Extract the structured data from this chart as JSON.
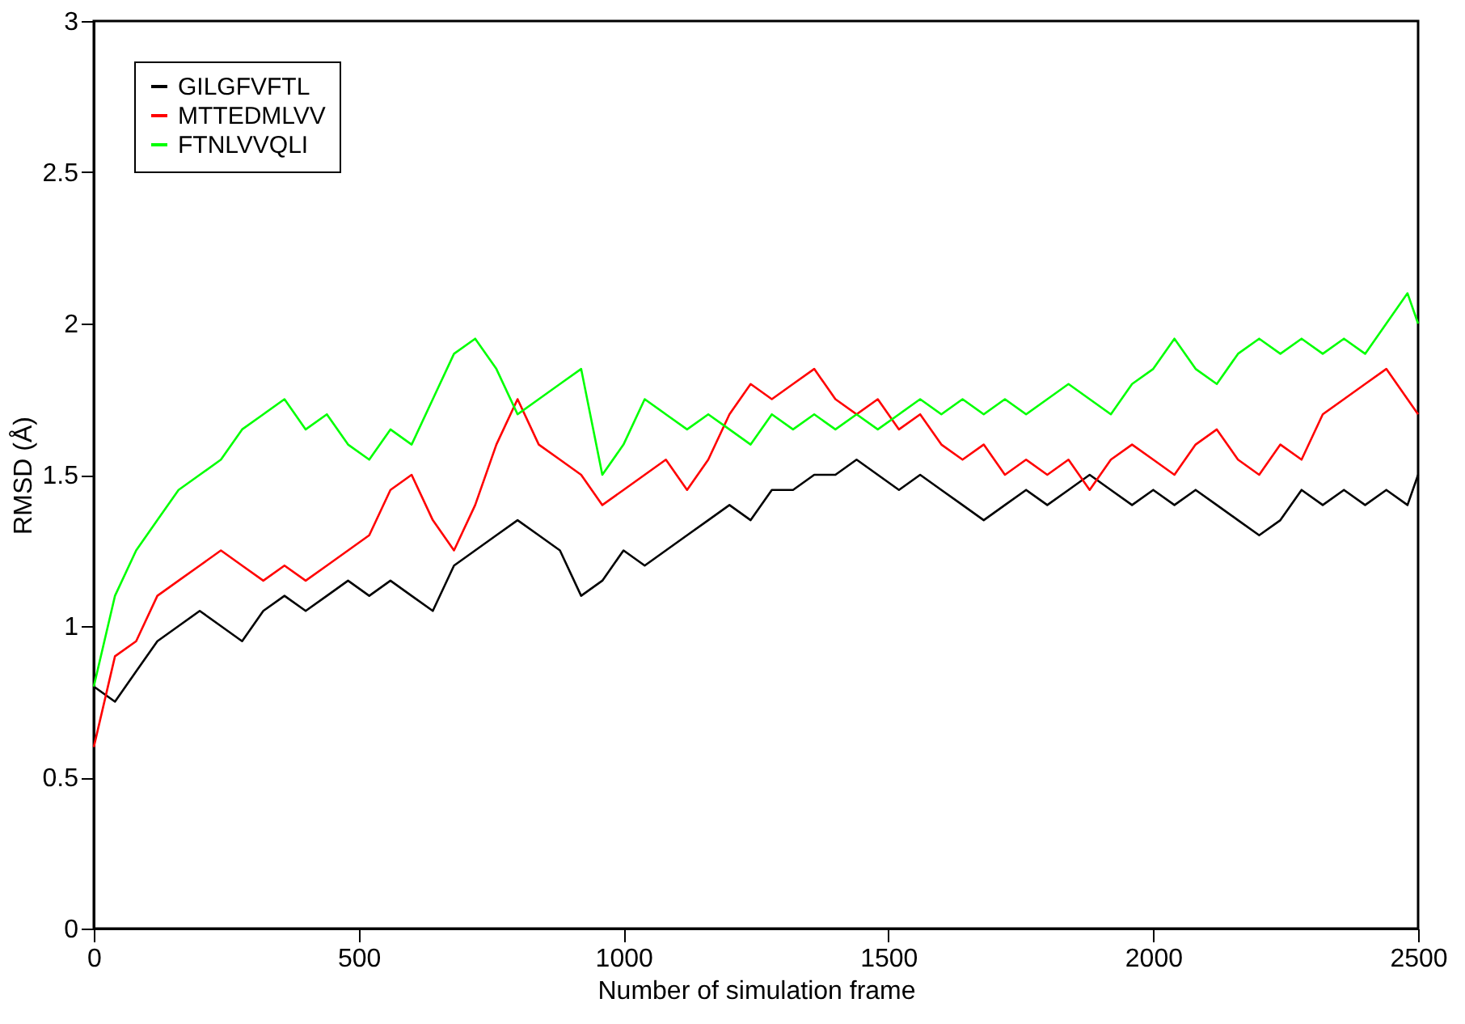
{
  "chart_data": {
    "type": "line",
    "xlabel": "Number of simulation frame",
    "ylabel": "RMSD (Å)",
    "x": [
      0,
      40,
      80,
      120,
      160,
      200,
      240,
      280,
      320,
      360,
      400,
      440,
      480,
      520,
      560,
      600,
      640,
      680,
      720,
      760,
      800,
      840,
      880,
      920,
      960,
      1000,
      1040,
      1080,
      1120,
      1160,
      1200,
      1240,
      1280,
      1320,
      1360,
      1400,
      1440,
      1480,
      1520,
      1560,
      1600,
      1640,
      1680,
      1720,
      1760,
      1800,
      1840,
      1880,
      1920,
      1960,
      2000,
      2040,
      2080,
      2120,
      2160,
      2200,
      2240,
      2280,
      2320,
      2360,
      2400,
      2440,
      2480,
      2500
    ],
    "series": [
      {
        "name": "GILGFVFTL",
        "color": "#000000",
        "values": [
          0.8,
          0.75,
          0.85,
          0.95,
          1.0,
          1.05,
          1.0,
          0.95,
          1.05,
          1.1,
          1.05,
          1.1,
          1.15,
          1.1,
          1.15,
          1.1,
          1.05,
          1.2,
          1.25,
          1.3,
          1.35,
          1.3,
          1.25,
          1.1,
          1.15,
          1.25,
          1.2,
          1.25,
          1.3,
          1.35,
          1.4,
          1.35,
          1.45,
          1.45,
          1.5,
          1.5,
          1.55,
          1.5,
          1.45,
          1.5,
          1.45,
          1.4,
          1.35,
          1.4,
          1.45,
          1.4,
          1.45,
          1.5,
          1.45,
          1.4,
          1.45,
          1.4,
          1.45,
          1.4,
          1.35,
          1.3,
          1.35,
          1.45,
          1.4,
          1.45,
          1.4,
          1.45,
          1.4,
          1.5
        ]
      },
      {
        "name": "MTTEDMLVV",
        "color": "#ff0000",
        "values": [
          0.6,
          0.9,
          0.95,
          1.1,
          1.15,
          1.2,
          1.25,
          1.2,
          1.15,
          1.2,
          1.15,
          1.2,
          1.25,
          1.3,
          1.45,
          1.5,
          1.35,
          1.25,
          1.4,
          1.6,
          1.75,
          1.6,
          1.55,
          1.5,
          1.4,
          1.45,
          1.5,
          1.55,
          1.45,
          1.55,
          1.7,
          1.8,
          1.75,
          1.8,
          1.85,
          1.75,
          1.7,
          1.75,
          1.65,
          1.7,
          1.6,
          1.55,
          1.6,
          1.5,
          1.55,
          1.5,
          1.55,
          1.45,
          1.55,
          1.6,
          1.55,
          1.5,
          1.6,
          1.65,
          1.55,
          1.5,
          1.6,
          1.55,
          1.7,
          1.75,
          1.8,
          1.85,
          1.75,
          1.7
        ]
      },
      {
        "name": "FTNLVVQLI",
        "color": "#00ff00",
        "values": [
          0.8,
          1.1,
          1.25,
          1.35,
          1.45,
          1.5,
          1.55,
          1.65,
          1.7,
          1.75,
          1.65,
          1.7,
          1.6,
          1.55,
          1.65,
          1.6,
          1.75,
          1.9,
          1.95,
          1.85,
          1.7,
          1.75,
          1.8,
          1.85,
          1.5,
          1.6,
          1.75,
          1.7,
          1.65,
          1.7,
          1.65,
          1.6,
          1.7,
          1.65,
          1.7,
          1.65,
          1.7,
          1.65,
          1.7,
          1.75,
          1.7,
          1.75,
          1.7,
          1.75,
          1.7,
          1.75,
          1.8,
          1.75,
          1.7,
          1.8,
          1.85,
          1.95,
          1.85,
          1.8,
          1.9,
          1.95,
          1.9,
          1.95,
          1.9,
          1.95,
          1.9,
          2.0,
          2.1,
          2.0
        ]
      }
    ],
    "xlim": [
      0,
      2500
    ],
    "xticks": [
      0,
      500,
      1000,
      1500,
      2000,
      2500
    ],
    "ylim": [
      0,
      3
    ],
    "yticks": [
      0,
      0.5,
      1,
      1.5,
      2,
      2.5,
      3
    ],
    "grid": false,
    "legend": "top left",
    "line_style": "solid",
    "marker": "none"
  }
}
